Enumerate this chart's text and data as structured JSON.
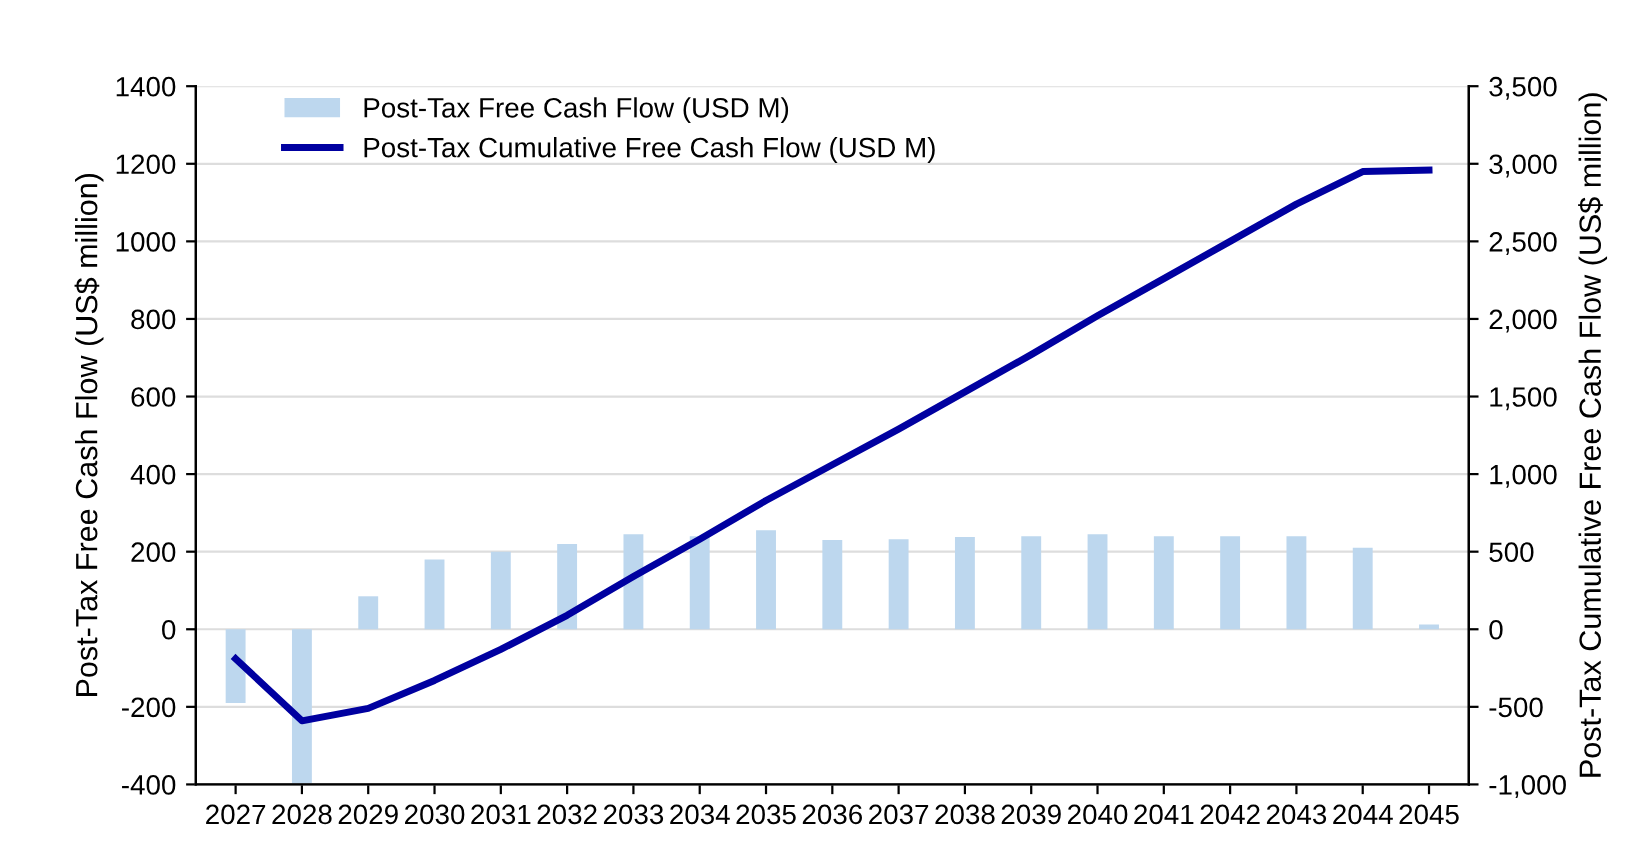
{
  "chart_data": {
    "type": "bar",
    "categories": [
      "2027",
      "2028",
      "2029",
      "2030",
      "2031",
      "2032",
      "2033",
      "2034",
      "2035",
      "2036",
      "2037",
      "2038",
      "2039",
      "2040",
      "2041",
      "2042",
      "2043",
      "2044",
      "2045"
    ],
    "series": [
      {
        "name": "Post-Tax Free Cash Flow (USD M)",
        "color": "#bdd7ee",
        "values": [
          -190,
          -400,
          85,
          180,
          200,
          220,
          245,
          240,
          255,
          230,
          232,
          238,
          240,
          245,
          240,
          240,
          240,
          210,
          12
        ]
      },
      {
        "name": "Post-Tax Cumulative Free Cash Flow (USD M)",
        "type": "line",
        "axis": "y2",
        "color": "#0000a0",
        "values": [
          -190,
          -590,
          -510,
          -330,
          -130,
          90,
          340,
          580,
          830,
          1060,
          1290,
          1530,
          1770,
          2020,
          2260,
          2500,
          2740,
          2950,
          2960
        ]
      }
    ],
    "ylabel": "Post-Tax Free Cash Flow (US$ million)",
    "y2label": "Post-Tax Cumulative Free Cash Flow (US$ million)",
    "ylim": [
      -400,
      1400
    ],
    "yticks": [
      -400,
      -200,
      0,
      200,
      400,
      600,
      800,
      1000,
      1200,
      1400
    ],
    "y2lim": [
      -1000,
      3500
    ],
    "y2ticks": [
      {
        "value": -1000,
        "label": "-1,000"
      },
      -500,
      0,
      500,
      {
        "value": 1000,
        "label": "1,000"
      },
      {
        "value": 1500,
        "label": "1,500"
      },
      {
        "value": 2000,
        "label": "2,000"
      },
      {
        "value": 2500,
        "label": "2,500"
      },
      {
        "value": 3000,
        "label": "3,000"
      },
      {
        "value": 3500,
        "label": "3,500"
      }
    ],
    "grid": "y",
    "legend": "top left",
    "marker": "none",
    "line_style": "solid"
  }
}
